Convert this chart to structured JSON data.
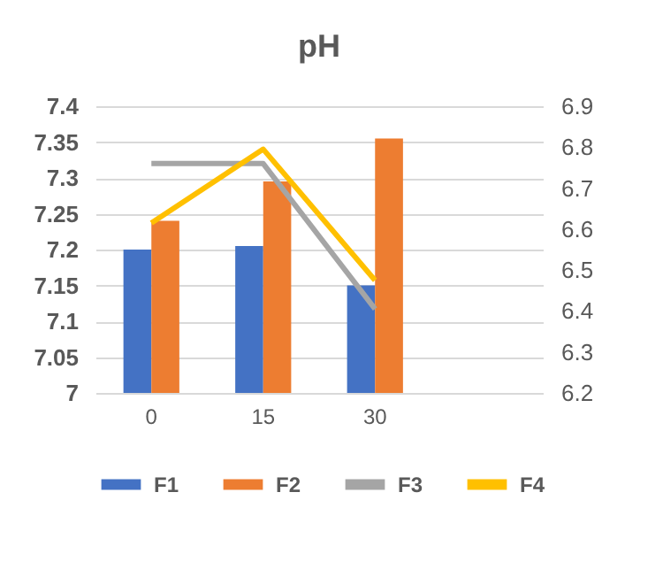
{
  "chart_data": {
    "type": "bar",
    "title": "pH",
    "categories": [
      "0",
      "15",
      "30",
      null
    ],
    "series": [
      {
        "name": "F1",
        "type": "bar",
        "color": "#4472c4",
        "values": [
          7.2,
          7.205,
          7.15,
          null
        ]
      },
      {
        "name": "F2",
        "type": "bar",
        "color": "#ed7d31",
        "values": [
          7.24,
          7.295,
          7.355,
          null
        ]
      },
      {
        "name": "F3",
        "type": "line",
        "axis": "y2",
        "color": "#a5a5a5",
        "values": [
          6.76,
          6.76,
          6.405,
          null
        ]
      },
      {
        "name": "F4",
        "type": "line",
        "axis": "y2",
        "color": "#ffc000",
        "values": [
          6.615,
          6.795,
          6.475,
          null
        ]
      }
    ],
    "ylim": [
      7,
      7.4
    ],
    "yticks": [
      7,
      7.05,
      7.1,
      7.15,
      7.2,
      7.25,
      7.3,
      7.35,
      7.4
    ],
    "y2lim": [
      6.2,
      6.9
    ],
    "y2ticks": [
      6.2,
      6.3,
      6.4,
      6.5,
      6.6,
      6.7,
      6.8,
      6.9
    ],
    "grid": "y",
    "legend": "bottom",
    "marker": "none",
    "line_style": "solid"
  }
}
